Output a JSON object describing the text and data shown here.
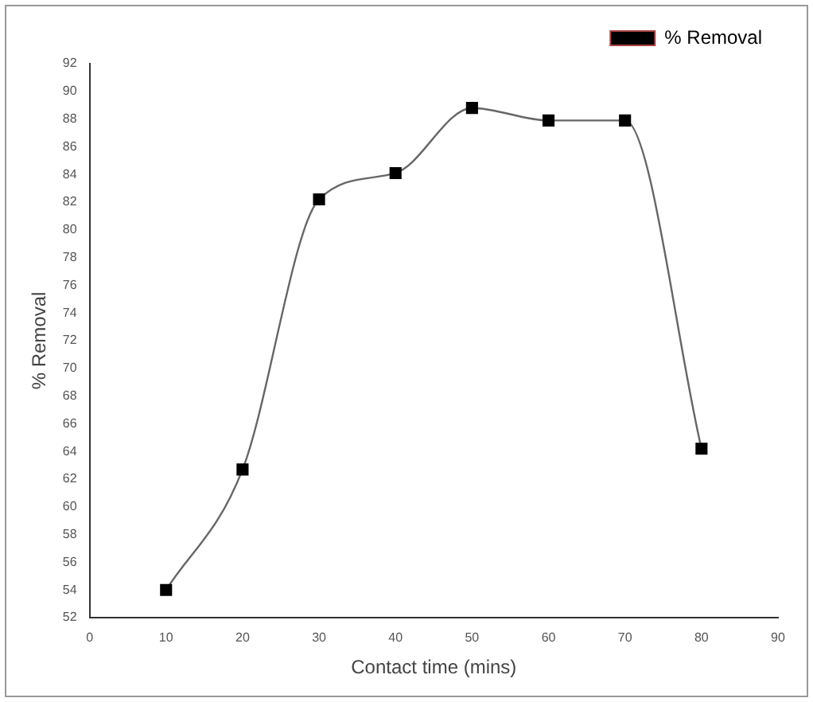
{
  "chart_data": {
    "type": "line",
    "xlabel": "Contact time (mins)",
    "ylabel": "% Removal",
    "x": [
      10,
      20,
      30,
      40,
      50,
      60,
      70,
      80
    ],
    "series": [
      {
        "name": "% Removal",
        "color": "#000000",
        "values": [
          54,
          62.7,
          82.2,
          84.1,
          88.8,
          87.9,
          87.9,
          64.2
        ]
      }
    ],
    "xlim": [
      0,
      90
    ],
    "xticks": [
      0,
      10,
      20,
      30,
      40,
      50,
      60,
      70,
      80,
      90
    ],
    "ylim": [
      52,
      92
    ],
    "yticks": [
      52,
      54,
      56,
      58,
      60,
      62,
      64,
      66,
      68,
      70,
      72,
      74,
      76,
      78,
      80,
      82,
      84,
      86,
      88,
      90,
      92
    ],
    "marker": "square",
    "line_style": "solid",
    "legend": "top right",
    "grid": false
  }
}
